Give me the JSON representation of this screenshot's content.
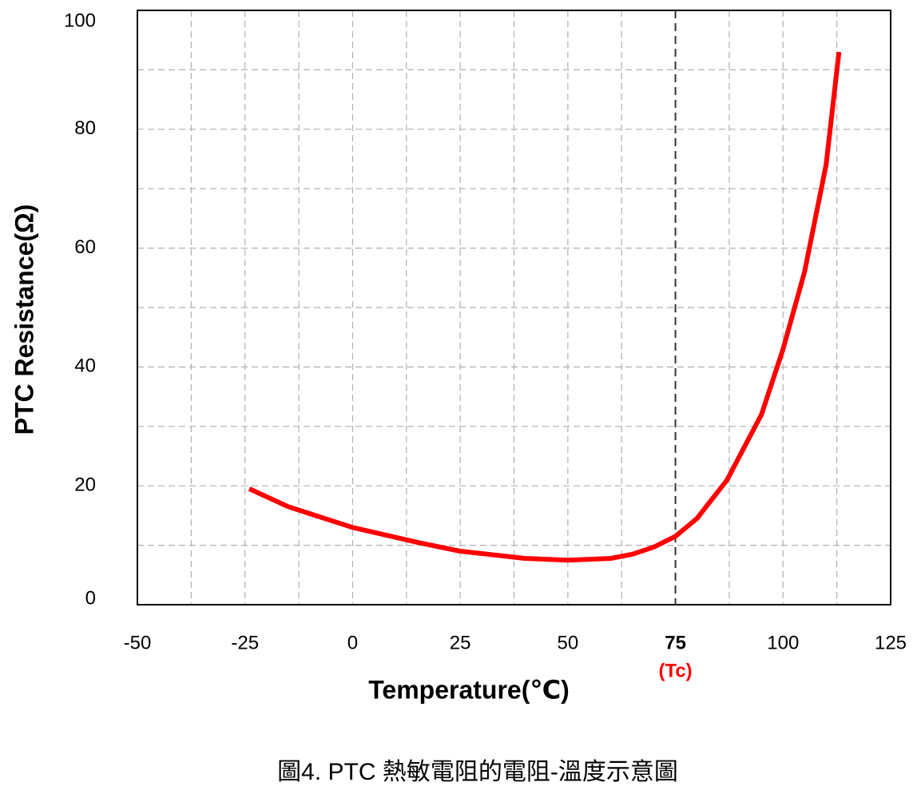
{
  "chart_data": {
    "type": "line",
    "x_label": "Temperature(℃)",
    "y_label": "PTC Resistance(Ω)",
    "caption": "圖4. PTC 熱敏電阻的電阻-溫度示意圖",
    "xlim": [
      -50,
      125
    ],
    "ylim": [
      0,
      100
    ],
    "xticks": [
      -50,
      -25,
      0,
      25,
      50,
      75,
      100,
      125
    ],
    "yticks": [
      0,
      20,
      40,
      60,
      80,
      100
    ],
    "x_minor_grid": [
      -37.5,
      -12.5,
      12.5,
      37.5,
      62.5,
      87.5,
      112.5
    ],
    "y_minor_grid": [
      10,
      30,
      50,
      70,
      90
    ],
    "grid": true,
    "marker_line": {
      "x": 75,
      "label": "(Tc)",
      "color": "#ff0000"
    },
    "series": [
      {
        "color": "#ff0000",
        "x": [
          -24,
          -15,
          0,
          15,
          25,
          40,
          50,
          60,
          65,
          70,
          75,
          80,
          87,
          95,
          100,
          105,
          110,
          113
        ],
        "values": [
          19.5,
          16.5,
          13,
          10.5,
          9,
          7.8,
          7.5,
          7.8,
          8.5,
          9.7,
          11.5,
          14.5,
          21,
          32,
          43,
          56,
          74,
          93
        ]
      }
    ]
  }
}
